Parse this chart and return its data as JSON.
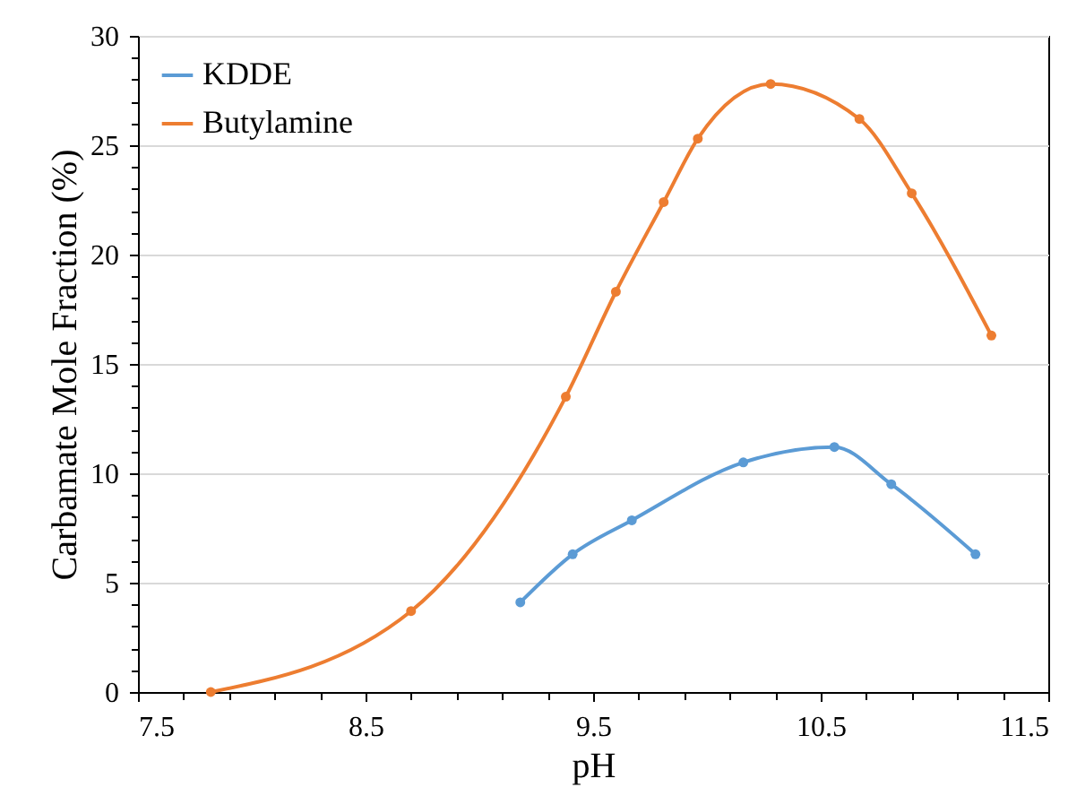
{
  "chart_data": {
    "type": "line",
    "xlabel": "pH",
    "ylabel": "Carbamate Mole Fraction (%)",
    "xlim": [
      7.5,
      11.5
    ],
    "ylim": [
      0,
      30
    ],
    "xticks": [
      7.5,
      {
        "value": 7.7,
        "label": null
      },
      {
        "value": 7.9,
        "label": null
      },
      {
        "value": 8.1,
        "label": null
      },
      {
        "value": 8.3,
        "label": null
      },
      8.5,
      {
        "value": 8.7,
        "label": null
      },
      {
        "value": 8.9,
        "label": null
      },
      {
        "value": 9.1,
        "label": null
      },
      {
        "value": 9.3,
        "label": null
      },
      9.5,
      {
        "value": 9.7,
        "label": null
      },
      {
        "value": 9.9,
        "label": null
      },
      {
        "value": 10.1,
        "label": null
      },
      {
        "value": 10.3,
        "label": null
      },
      10.5,
      {
        "value": 10.7,
        "label": null
      },
      {
        "value": 10.9,
        "label": null
      },
      {
        "value": 11.1,
        "label": null
      },
      {
        "value": 11.3,
        "label": null
      },
      11.5
    ],
    "yticks": [
      0,
      {
        "value": 1,
        "label": null
      },
      {
        "value": 2,
        "label": null
      },
      {
        "value": 3,
        "label": null
      },
      {
        "value": 4,
        "label": null
      },
      5,
      {
        "value": 6,
        "label": null
      },
      {
        "value": 7,
        "label": null
      },
      {
        "value": 8,
        "label": null
      },
      {
        "value": 9,
        "label": null
      },
      10,
      {
        "value": 11,
        "label": null
      },
      {
        "value": 12,
        "label": null
      },
      {
        "value": 13,
        "label": null
      },
      {
        "value": 14,
        "label": null
      },
      15,
      {
        "value": 16,
        "label": null
      },
      {
        "value": 17,
        "label": null
      },
      {
        "value": 18,
        "label": null
      },
      {
        "value": 19,
        "label": null
      },
      20,
      {
        "value": 21,
        "label": null
      },
      {
        "value": 22,
        "label": null
      },
      {
        "value": 23,
        "label": null
      },
      {
        "value": 24,
        "label": null
      },
      25,
      {
        "value": 26,
        "label": null
      },
      {
        "value": 27,
        "label": null
      },
      {
        "value": 28,
        "label": null
      },
      {
        "value": 29,
        "label": null
      },
      30
    ],
    "grid": "y",
    "legend": "top left",
    "marker": "circle",
    "line_style": "solid",
    "series": [
      {
        "name": "KDDE",
        "color": "#5b9bd5",
        "x": [
          9.18,
          9.41,
          9.67,
          10.16,
          10.56,
          10.81,
          11.18
        ],
        "values": [
          4.1,
          6.3,
          7.85,
          10.5,
          11.2,
          9.5,
          6.3
        ]
      },
      {
        "name": "Butylamine",
        "color": "#ed7d31",
        "x": [
          7.82,
          8.7,
          9.38,
          9.6,
          9.81,
          9.96,
          10.28,
          10.67,
          10.9,
          11.25
        ],
        "values": [
          0,
          3.7,
          13.5,
          18.3,
          22.4,
          25.3,
          27.8,
          26.2,
          22.8,
          16.3
        ]
      }
    ]
  }
}
